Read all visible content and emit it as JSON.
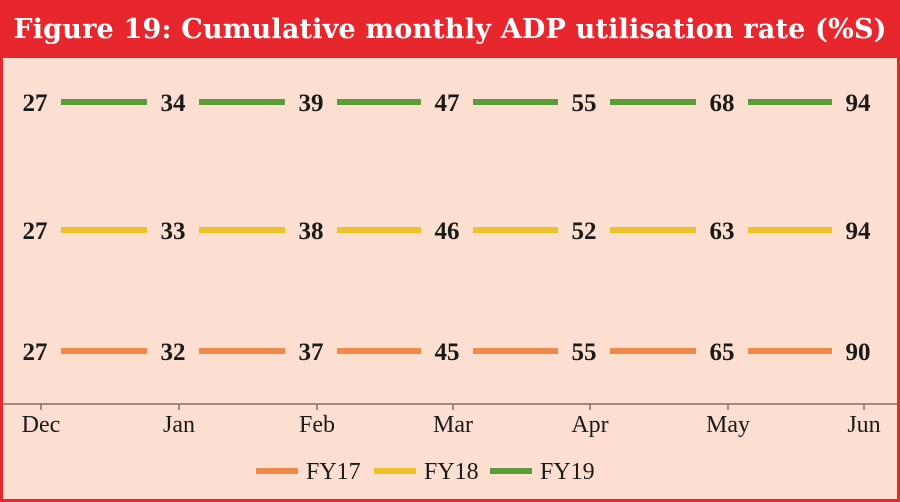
{
  "chart_data": {
    "type": "line",
    "title": "Figure 19: Cumulative monthly ADP utilisation rate (%S)",
    "categories": [
      "Dec",
      "Jan",
      "Feb",
      "Mar",
      "Apr",
      "May",
      "Jun"
    ],
    "series": [
      {
        "name": "FY19",
        "color": "#5a9b3a",
        "values": [
          27,
          34,
          39,
          47,
          55,
          68,
          94
        ]
      },
      {
        "name": "FY18",
        "color": "#ecc12a",
        "values": [
          27,
          33,
          38,
          46,
          52,
          63,
          94
        ]
      },
      {
        "name": "FY17",
        "color": "#ef8a4a",
        "values": [
          27,
          32,
          37,
          45,
          55,
          65,
          90
        ]
      }
    ],
    "legend": [
      "FY17",
      "FY18",
      "FY19"
    ],
    "legend_position": "bottom",
    "xlabel": "",
    "ylabel": "",
    "grid": false
  }
}
